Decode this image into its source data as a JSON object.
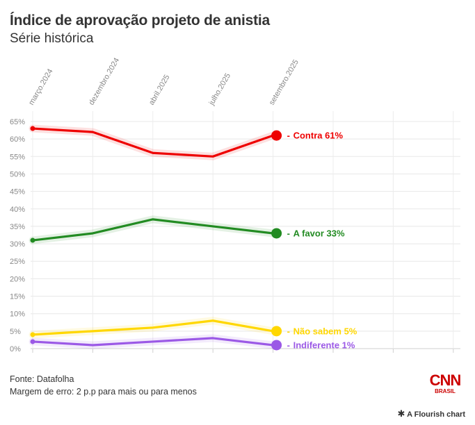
{
  "title": "Índice de aprovação projeto de anistia",
  "subtitle": "Série histórica",
  "footer": {
    "source": "Fonte: Datafolha",
    "margin": "Margem de erro: 2 p.p para mais ou para menos"
  },
  "logo": {
    "main": "CNN",
    "sub": "BRASIL"
  },
  "credit": "A Flourish chart",
  "chart_data": {
    "type": "line",
    "x": [
      "março.2024",
      "dezembro.2024",
      "abril.2025",
      "julho.2025",
      "setembro.2025"
    ],
    "y_ticks": [
      "0%",
      "5%",
      "10%",
      "15%",
      "20%",
      "25%",
      "30%",
      "35%",
      "40%",
      "45%",
      "50%",
      "55%",
      "60%",
      "65%"
    ],
    "ylim": [
      0,
      65
    ],
    "grid": true,
    "series": [
      {
        "name": "Contra",
        "label": "Contra 61%",
        "color": "#ee0000",
        "values": [
          63,
          62,
          56,
          55,
          61
        ]
      },
      {
        "name": "A favor",
        "label": "A favor 33%",
        "color": "#228b22",
        "values": [
          31,
          33,
          37,
          35,
          33
        ]
      },
      {
        "name": "Não sabem",
        "label": "Não sabem 5%",
        "color": "#ffd700",
        "values": [
          4,
          5,
          6,
          8,
          5
        ]
      },
      {
        "name": "Indiferente",
        "label": "Indiferente 1%",
        "color": "#9b59e6",
        "values": [
          2,
          1,
          2,
          3,
          1
        ]
      }
    ]
  }
}
